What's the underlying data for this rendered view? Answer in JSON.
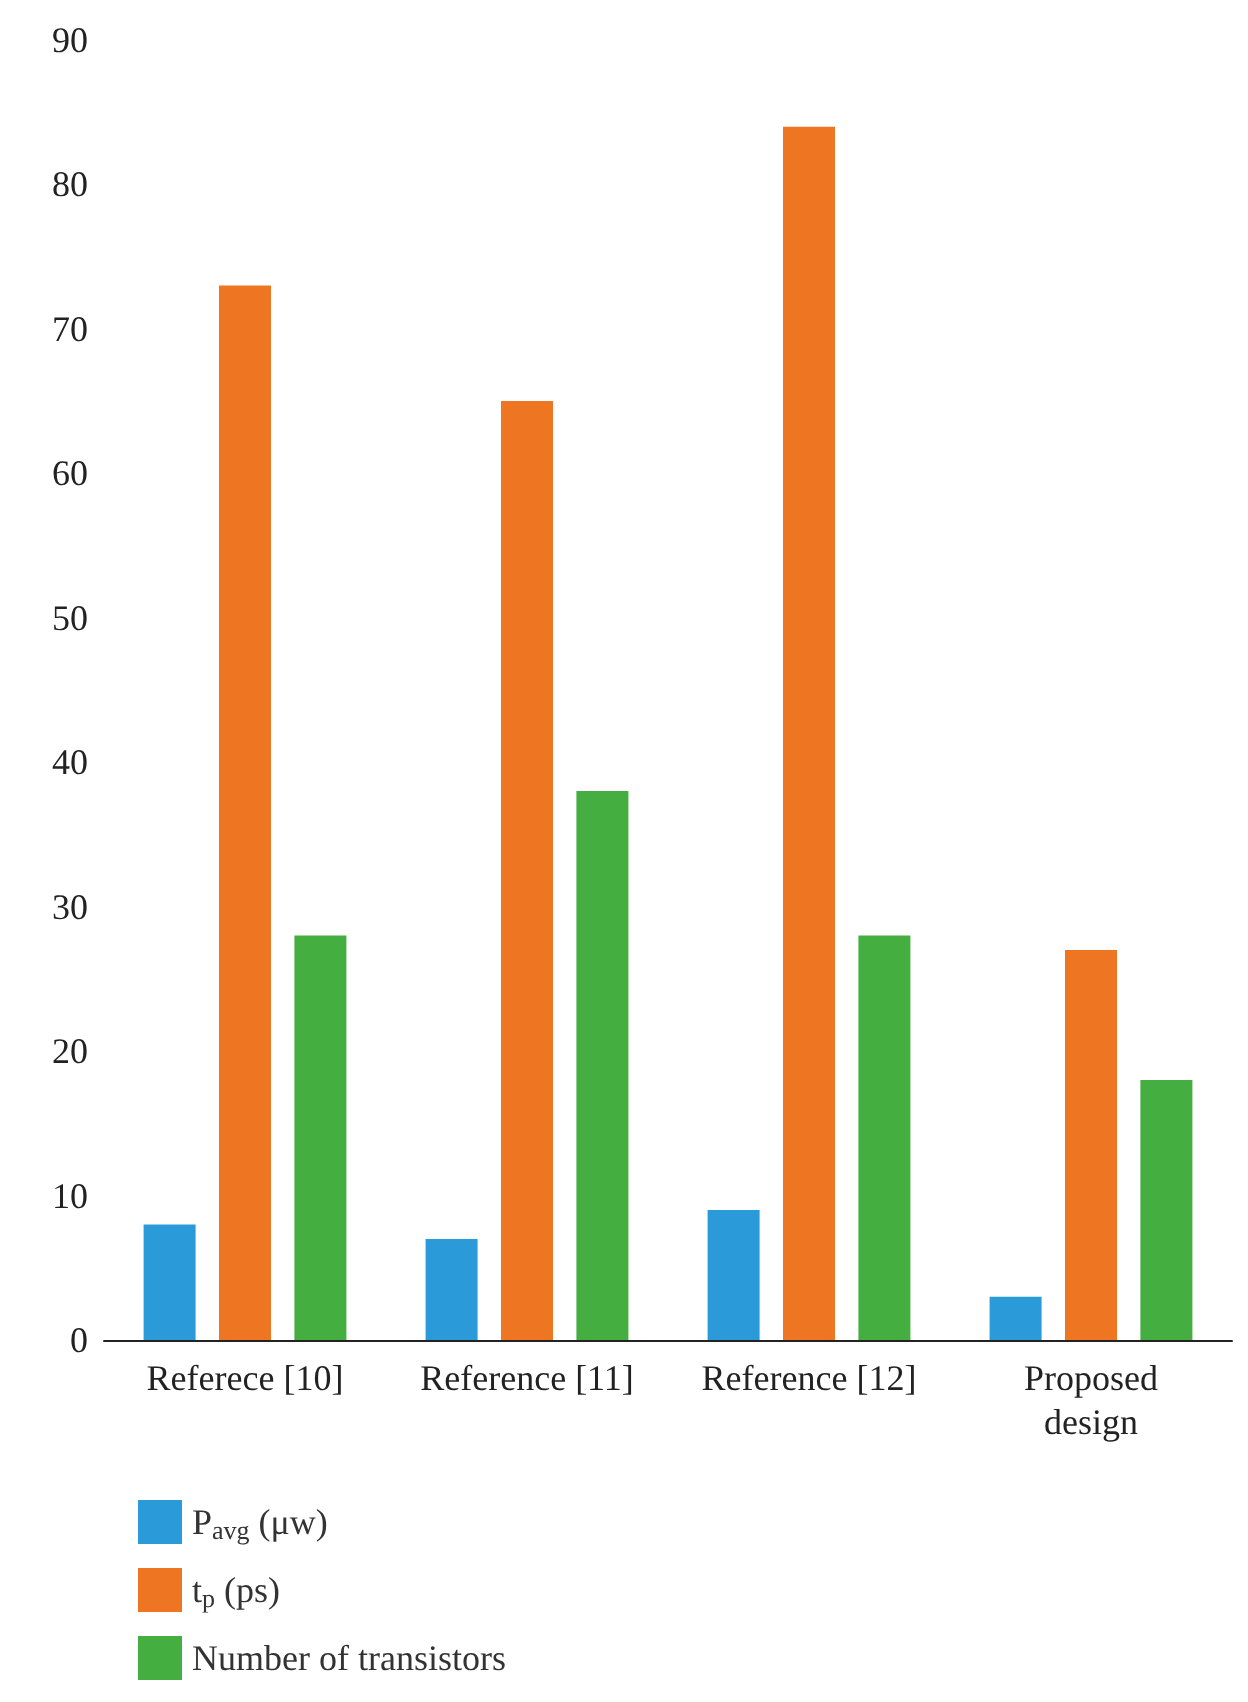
{
  "chart_data": {
    "type": "bar",
    "categories": [
      "Referece [10]",
      "Reference [11]",
      "Reference [12]",
      "Proposed\ndesign"
    ],
    "series": [
      {
        "name": "P$_{avg}$ (μw)",
        "color": "#2a9bd8",
        "values": [
          8,
          7,
          9,
          3
        ]
      },
      {
        "name": "t$_{p}$ (ps)",
        "color": "#ee7623",
        "values": [
          73,
          65,
          84,
          27
        ]
      },
      {
        "name": "Number of transistors",
        "color": "#45ae40",
        "values": [
          28,
          38,
          28,
          18
        ]
      }
    ],
    "ylim": [
      0,
      90
    ],
    "yticks": [
      0,
      10,
      20,
      30,
      40,
      50,
      60,
      70,
      80,
      90
    ],
    "grid": false,
    "legend": "bottom left"
  }
}
